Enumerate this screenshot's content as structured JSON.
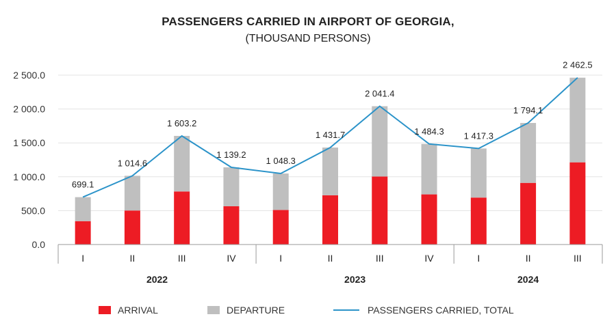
{
  "chart_data": {
    "type": "bar",
    "title": "PASSENGERS CARRIED IN AIRPORT OF GEORGIA,",
    "subtitle": "(THOUSAND PERSONS)",
    "categories": [
      "I",
      "II",
      "III",
      "IV",
      "I",
      "II",
      "III",
      "IV",
      "I",
      "II",
      "III"
    ],
    "groups": [
      {
        "label": "2022",
        "start": 0,
        "count": 4
      },
      {
        "label": "2023",
        "start": 4,
        "count": 4
      },
      {
        "label": "2024",
        "start": 8,
        "count": 3
      }
    ],
    "series": [
      {
        "name": "ARRIVAL",
        "type": "bar",
        "stack": "s",
        "color": "#ed1c24",
        "values": [
          345,
          502,
          783,
          565,
          510,
          727,
          1003,
          740,
          693,
          910,
          1213
        ]
      },
      {
        "name": "DEPARTURE",
        "type": "bar",
        "stack": "s",
        "color": "#bfbfbf",
        "values": [
          354.1,
          512.6,
          820.2,
          574.2,
          538.3,
          704.7,
          1038.4,
          744.3,
          724.3,
          884.1,
          1249.5
        ]
      },
      {
        "name": "PASSENGERS CARRIED, TOTAL",
        "type": "line",
        "color": "#2b93c9",
        "values": [
          699.1,
          1014.6,
          1603.2,
          1139.2,
          1048.3,
          1431.7,
          2041.4,
          1484.3,
          1417.3,
          1794.1,
          2462.5
        ]
      }
    ],
    "total_labels": [
      "699.1",
      "1 014.6",
      "1 603.2",
      "1 139.2",
      "1 048.3",
      "1 431.7",
      "2 041.4",
      "1 484.3",
      "1 417.3",
      "1 794.1",
      "2 462.5"
    ],
    "y_ticks": [
      {
        "value": 0,
        "label": "0.0"
      },
      {
        "value": 500,
        "label": "500.0"
      },
      {
        "value": 1000,
        "label": "1 000.0"
      },
      {
        "value": 1500,
        "label": "1 500.0"
      },
      {
        "value": 2000,
        "label": "2 000.0"
      },
      {
        "value": 2500,
        "label": "2 500.0"
      }
    ],
    "ylim": [
      0,
      2500
    ],
    "grid": true,
    "legend_position": "bottom"
  }
}
